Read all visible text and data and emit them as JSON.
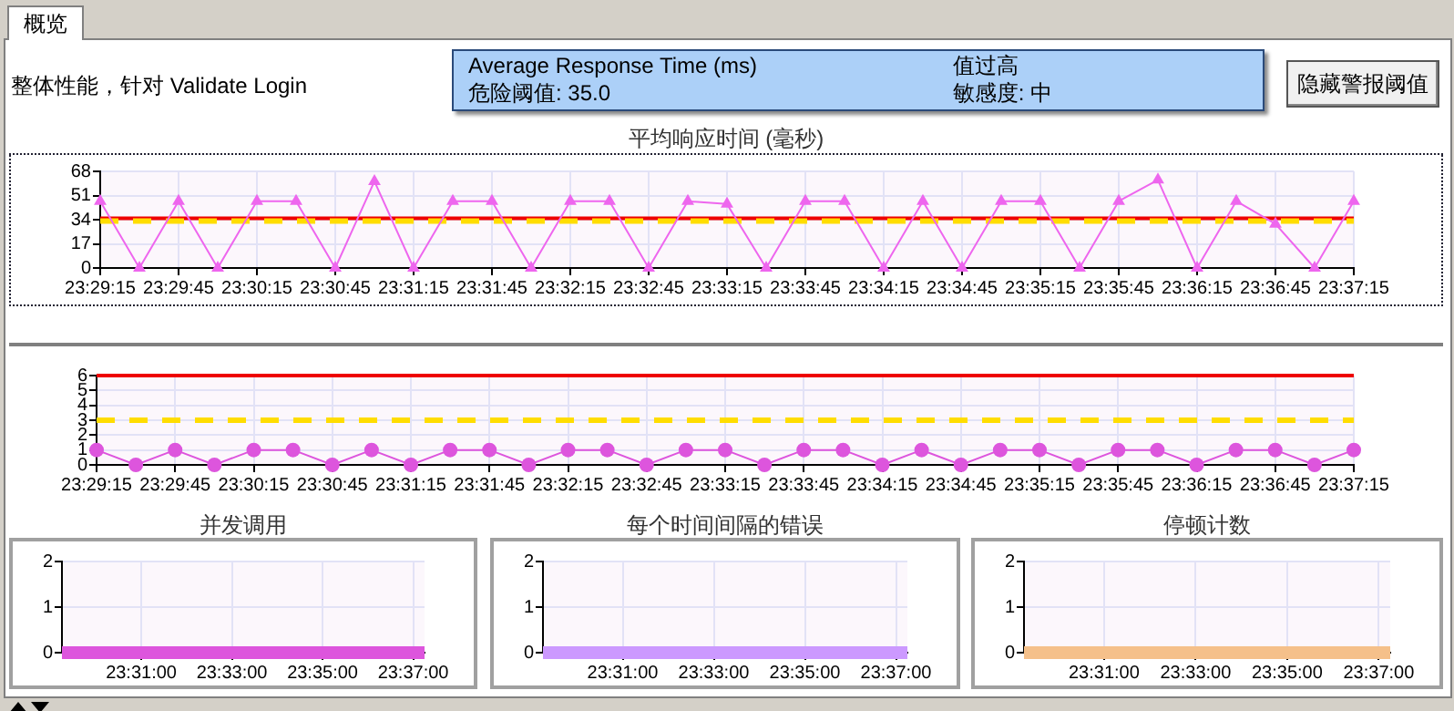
{
  "chart_data": [
    {
      "type": "other",
      "title": "概览",
      "annotations": [
        "整体性能，针对 Validate Login",
        "隐藏警报阈值"
      ]
    },
    {
      "type": "line",
      "title": "平均响应时间 (毫秒)",
      "categories": [
        "23:29:15",
        null,
        "23:29:45",
        null,
        "23:30:15",
        null,
        "23:30:45",
        null,
        "23:31:15",
        null,
        "23:31:45",
        null,
        "23:32:15",
        null,
        "23:32:45",
        null,
        "23:33:15",
        null,
        "23:33:45",
        null,
        "23:34:15",
        null,
        "23:34:45",
        null,
        "23:35:15",
        null,
        "23:35:45",
        null,
        "23:36:15",
        null,
        "23:36:45",
        null,
        "23:37:15"
      ],
      "values": [
        47,
        0,
        47,
        0,
        47,
        47,
        0,
        61,
        0,
        47,
        47,
        0,
        47,
        47,
        0,
        47,
        45,
        0,
        47,
        47,
        0,
        47,
        0,
        47,
        47,
        0,
        47,
        62,
        0,
        47,
        31,
        0,
        47
      ],
      "color": "#ee66ee",
      "marker": "triangle",
      "ylim": [
        0,
        68
      ],
      "yticks": [
        0,
        17,
        34,
        51,
        68
      ],
      "grid": true,
      "ref_lines": [
        {
          "axis": "y",
          "value": 35,
          "color": "#ee0000"
        },
        {
          "axis": "y",
          "value": 33,
          "color": "#ffdd00",
          "line_style": "dashed"
        }
      ],
      "annotations": [
        "Average Response Time (ms)",
        "值过高",
        "危险阈值: 35.0",
        "敏感度: 中"
      ]
    },
    {
      "type": "line",
      "categories": [
        "23:29:15",
        null,
        "23:29:45",
        null,
        "23:30:15",
        null,
        "23:30:45",
        null,
        "23:31:15",
        null,
        "23:31:45",
        null,
        "23:32:15",
        null,
        "23:32:45",
        null,
        "23:33:15",
        null,
        "23:33:45",
        null,
        "23:34:15",
        null,
        "23:34:45",
        null,
        "23:35:15",
        null,
        "23:35:45",
        null,
        "23:36:15",
        null,
        "23:36:45",
        null,
        "23:37:15"
      ],
      "values": [
        1,
        0,
        1,
        0,
        1,
        1,
        0,
        1,
        0,
        1,
        1,
        0,
        1,
        1,
        0,
        1,
        1,
        0,
        1,
        1,
        0,
        1,
        0,
        1,
        1,
        0,
        1,
        1,
        0,
        1,
        1,
        0,
        1
      ],
      "color": "#dd55dd",
      "marker": "circle",
      "ylim": [
        0,
        6
      ],
      "yticks": [
        0,
        1,
        2,
        3,
        4,
        5,
        6
      ],
      "grid": true,
      "ref_lines": [
        {
          "axis": "y",
          "value": 6,
          "color": "#ee0000"
        },
        {
          "axis": "y",
          "value": 3,
          "color": "#ffdd00",
          "line_style": "dashed"
        }
      ]
    },
    {
      "type": "line",
      "title": "并发调用",
      "categories": [
        null,
        null,
        null,
        null,
        null,
        null,
        null,
        "23:31:00",
        null,
        null,
        null,
        null,
        null,
        null,
        null,
        "23:33:00",
        null,
        null,
        null,
        null,
        null,
        null,
        null,
        "23:35:00",
        null,
        null,
        null,
        null,
        null,
        null,
        null,
        "23:37:00",
        null
      ],
      "values": [
        0,
        0,
        0,
        0,
        0,
        0,
        0,
        0,
        0,
        0,
        0,
        0,
        0,
        0,
        0,
        0,
        0,
        0,
        0,
        0,
        0,
        0,
        0,
        0,
        0,
        0,
        0,
        0,
        0,
        0,
        0,
        0,
        0
      ],
      "color": "#dd55dd",
      "ylim": [
        0,
        2
      ],
      "yticks": [
        0,
        1,
        2
      ],
      "grid": true
    },
    {
      "type": "line",
      "title": "每个时间间隔的错误",
      "categories": [
        null,
        null,
        null,
        null,
        null,
        null,
        null,
        "23:31:00",
        null,
        null,
        null,
        null,
        null,
        null,
        null,
        "23:33:00",
        null,
        null,
        null,
        null,
        null,
        null,
        null,
        "23:35:00",
        null,
        null,
        null,
        null,
        null,
        null,
        null,
        "23:37:00",
        null
      ],
      "values": [
        0,
        0,
        0,
        0,
        0,
        0,
        0,
        0,
        0,
        0,
        0,
        0,
        0,
        0,
        0,
        0,
        0,
        0,
        0,
        0,
        0,
        0,
        0,
        0,
        0,
        0,
        0,
        0,
        0,
        0,
        0,
        0,
        0
      ],
      "color": "#cc99ff",
      "ylim": [
        0,
        2
      ],
      "yticks": [
        0,
        1,
        2
      ],
      "grid": true
    },
    {
      "type": "line",
      "title": "停顿计数",
      "categories": [
        null,
        null,
        null,
        null,
        null,
        null,
        null,
        "23:31:00",
        null,
        null,
        null,
        null,
        null,
        null,
        null,
        "23:33:00",
        null,
        null,
        null,
        null,
        null,
        null,
        null,
        "23:35:00",
        null,
        null,
        null,
        null,
        null,
        null,
        null,
        "23:37:00",
        null
      ],
      "values": [
        0,
        0,
        0,
        0,
        0,
        0,
        0,
        0,
        0,
        0,
        0,
        0,
        0,
        0,
        0,
        0,
        0,
        0,
        0,
        0,
        0,
        0,
        0,
        0,
        0,
        0,
        0,
        0,
        0,
        0,
        0,
        0,
        0
      ],
      "color": "#f5c08a",
      "ylim": [
        0,
        2
      ],
      "yticks": [
        0,
        1,
        2
      ],
      "grid": true
    }
  ]
}
